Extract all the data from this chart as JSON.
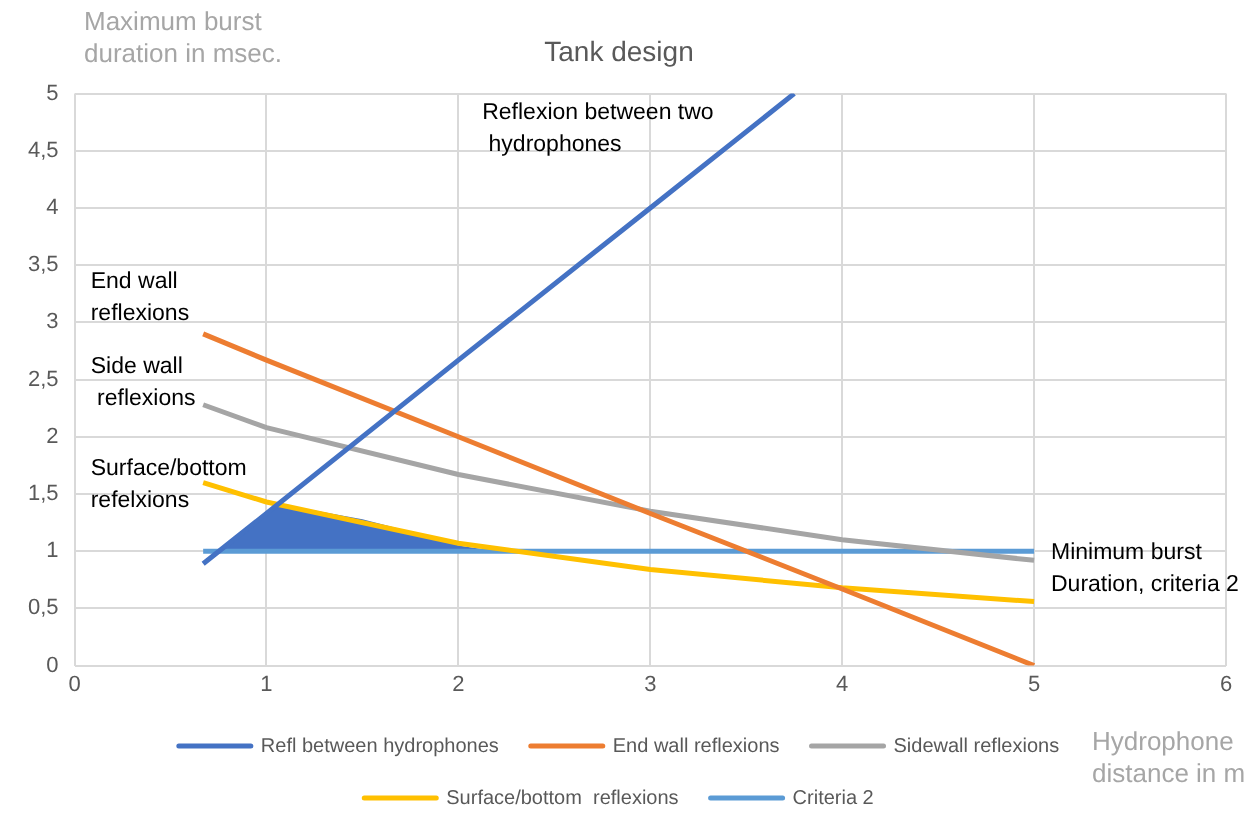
{
  "chart_data": {
    "type": "line",
    "title": "Tank design",
    "ylabel": "Maximum burst duration in msec.",
    "xlabel": "Hydrophone distance in m",
    "xlim": [
      0,
      6
    ],
    "xticks": [
      0,
      1,
      2,
      3,
      4,
      5,
      6
    ],
    "ylim": [
      0,
      5
    ],
    "yticks": [
      0,
      {
        "value": 0.5,
        "label": "0,5"
      },
      1,
      {
        "value": 1.5,
        "label": "1,5"
      },
      2,
      {
        "value": 2.5,
        "label": "2,5"
      },
      3,
      {
        "value": 3.5,
        "label": "3,5"
      },
      4,
      {
        "value": 4.5,
        "label": "4,5"
      },
      5
    ],
    "grid": true,
    "legend": "bottom",
    "marker": "none",
    "series": [
      {
        "name": "Refl between hydrophones",
        "color": "#4472c4",
        "x": [
          0.67,
          1,
          2,
          3,
          3.75
        ],
        "values": [
          0.89,
          1.33,
          2.67,
          4,
          5
        ]
      },
      {
        "name": "End wall reflexions",
        "color": "#ed7d31",
        "x": [
          0.67,
          1,
          2,
          3,
          4,
          5
        ],
        "values": [
          2.9,
          2.67,
          2,
          1.33,
          0.67,
          0
        ]
      },
      {
        "name": "Sidewall reflexions",
        "color": "#a5a5a5",
        "x": [
          0.67,
          1,
          2,
          3,
          4,
          5
        ],
        "values": [
          2.28,
          2.08,
          1.67,
          1.35,
          1.1,
          0.92
        ]
      },
      {
        "name": "Surface/bottom  reflexions",
        "color": "#ffc000",
        "x": [
          0.67,
          1,
          2,
          3,
          4,
          5
        ],
        "values": [
          1.6,
          1.43,
          1.07,
          0.84,
          0.68,
          0.56
        ]
      },
      {
        "name": "Criteria 2",
        "color": "#5b9bd5",
        "x": [
          0.67,
          5
        ],
        "values": [
          1,
          1
        ]
      },
      {
        "type": "area",
        "color": "#4472c4",
        "x": [
          0.77,
          1.05,
          1.2,
          1.5,
          1.8,
          2,
          2.2
        ],
        "values": [
          1,
          1.4,
          1.37,
          1.28,
          1.15,
          1.05,
          1
        ]
      }
    ],
    "annotations": [
      "Reflexion between two\n hydrophones",
      "End wall\nreflexions",
      "Side wall\n reflexions",
      "Surface/bottom\nrefelxions",
      "Minimum burst\nDuration, criteria 2"
    ]
  }
}
